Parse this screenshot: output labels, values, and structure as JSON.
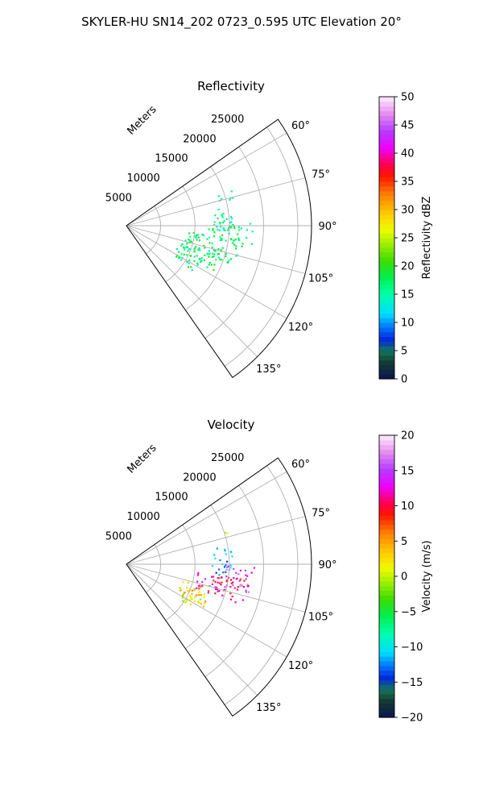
{
  "figure": {
    "suptitle": "SKYLER-HU  SN14_202  0723_0.595 UTC Elevation 20°"
  },
  "chart_data": [
    {
      "type": "polar-sector",
      "title": "Reflectivity",
      "range_label": "Meters",
      "range_ticks": [
        5000,
        10000,
        15000,
        20000,
        25000
      ],
      "range_tick_labels": [
        "5000",
        "10000",
        "15000",
        "20000",
        "25000"
      ],
      "rmax": 27000,
      "azimuth_range_deg": [
        55,
        145
      ],
      "azimuth_ticks": [
        60,
        75,
        90,
        105,
        120,
        135
      ],
      "azimuth_tick_labels": [
        "60°",
        "75°",
        "90°",
        "105°",
        "120°",
        "135°"
      ],
      "grid": true,
      "colorbar": {
        "label": "Reflectivity dBZ",
        "vmin": 0,
        "vmax": 50,
        "ticks": [
          0,
          5,
          10,
          15,
          20,
          25,
          30,
          35,
          40,
          45,
          50
        ],
        "tick_labels": [
          "0",
          "5",
          "10",
          "15",
          "20",
          "25",
          "30",
          "35",
          "40",
          "45",
          "50"
        ]
      },
      "echo_regions": [
        {
          "az_range": [
            71,
            76
          ],
          "r_range": [
            13500,
            16500
          ],
          "value": 15
        },
        {
          "az_range": [
            80,
            93
          ],
          "r_range": [
            12500,
            16500
          ],
          "value": 15
        },
        {
          "az_range": [
            88,
            101
          ],
          "r_range": [
            12000,
            18500
          ],
          "value": 17
        },
        {
          "az_range": [
            96,
            110
          ],
          "r_range": [
            9000,
            17500
          ],
          "value": 17
        },
        {
          "az_range": [
            104,
            118
          ],
          "r_range": [
            8000,
            14500
          ],
          "value": 18
        },
        {
          "az_range": [
            110,
            124
          ],
          "r_range": [
            8500,
            12500
          ],
          "value": 17
        }
      ]
    },
    {
      "type": "polar-sector",
      "title": "Velocity",
      "range_label": "Meters",
      "range_ticks": [
        5000,
        10000,
        15000,
        20000,
        25000
      ],
      "range_tick_labels": [
        "5000",
        "10000",
        "15000",
        "20000",
        "25000"
      ],
      "rmax": 27000,
      "azimuth_range_deg": [
        55,
        145
      ],
      "azimuth_ticks": [
        60,
        75,
        90,
        105,
        120,
        135
      ],
      "azimuth_tick_labels": [
        "60°",
        "75°",
        "90°",
        "105°",
        "120°",
        "135°"
      ],
      "grid": true,
      "colorbar": {
        "label": "Velocity (m/s)",
        "vmin": -20,
        "vmax": 20,
        "ticks": [
          -20,
          -15,
          -10,
          -5,
          0,
          5,
          10,
          15,
          20
        ],
        "tick_labels": [
          "−20",
          "−15",
          "−10",
          "−5",
          "0",
          "5",
          "10",
          "15",
          "20"
        ]
      },
      "echo_regions": [
        {
          "az_range": [
            71,
            74
          ],
          "r_range": [
            14500,
            16000
          ],
          "value": 1
        },
        {
          "az_range": [
            80,
            92
          ],
          "r_range": [
            12500,
            15500
          ],
          "value": -12
        },
        {
          "az_range": [
            91,
            97
          ],
          "r_range": [
            13000,
            15500
          ],
          "value": -13
        },
        {
          "az_range": [
            90,
            104
          ],
          "r_range": [
            14500,
            19000
          ],
          "value": 15
        },
        {
          "az_range": [
            97,
            110
          ],
          "r_range": [
            10500,
            14500
          ],
          "value": 14
        },
        {
          "az_range": [
            97,
            110
          ],
          "r_range": [
            12500,
            18000
          ],
          "value": 10
        },
        {
          "az_range": [
            106,
            119
          ],
          "r_range": [
            8500,
            13000
          ],
          "value": 4
        },
        {
          "az_range": [
            110,
            124
          ],
          "r_range": [
            8500,
            12500
          ],
          "value": 1
        }
      ]
    }
  ]
}
